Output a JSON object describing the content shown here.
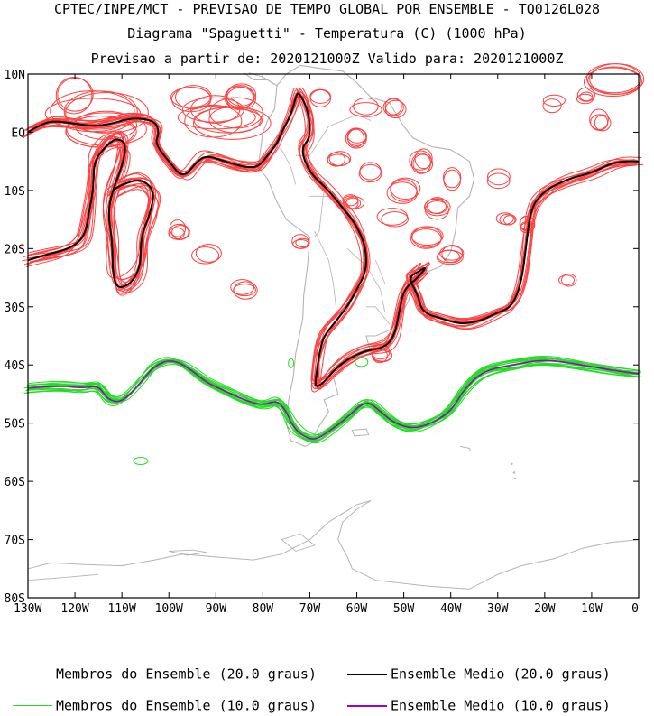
{
  "titles": {
    "line1": "CPTEC/INPE/MCT - PREVISAO DE TEMPO GLOBAL POR ENSEMBLE - TQ0126L028",
    "line2": "Diagrama \"Spaguetti\" - Temperatura (C) (1000 hPa)",
    "line3": "Previsao a partir de: 2020121000Z  Valido para: 2020121000Z"
  },
  "map": {
    "lon_range": [
      -130,
      0
    ],
    "lat_range": [
      -80,
      10
    ],
    "lat_ticks": [
      {
        "value": 10,
        "label": "10N"
      },
      {
        "value": 0,
        "label": "EQ"
      },
      {
        "value": -10,
        "label": "10S"
      },
      {
        "value": -20,
        "label": "20S"
      },
      {
        "value": -30,
        "label": "30S"
      },
      {
        "value": -40,
        "label": "40S"
      },
      {
        "value": -50,
        "label": "50S"
      },
      {
        "value": -60,
        "label": "60S"
      },
      {
        "value": -70,
        "label": "70S"
      },
      {
        "value": -80,
        "label": "80S"
      }
    ],
    "lon_ticks": [
      {
        "value": -130,
        "label": "130W"
      },
      {
        "value": -120,
        "label": "120W"
      },
      {
        "value": -110,
        "label": "110W"
      },
      {
        "value": -100,
        "label": "100W"
      },
      {
        "value": -90,
        "label": "90W"
      },
      {
        "value": -80,
        "label": "80W"
      },
      {
        "value": -70,
        "label": "70W"
      },
      {
        "value": -60,
        "label": "60W"
      },
      {
        "value": -50,
        "label": "50W"
      },
      {
        "value": -40,
        "label": "40W"
      },
      {
        "value": -30,
        "label": "30W"
      },
      {
        "value": -20,
        "label": "20W"
      },
      {
        "value": -10,
        "label": "10W"
      },
      {
        "value": 0,
        "label": "0"
      }
    ],
    "colors": {
      "members_20": "#ff4040",
      "mean_20": "#000000",
      "members_10": "#22dd22",
      "mean_10": "#a000c8",
      "coast": "#b4b4b4"
    },
    "isotherm_20_mean": [
      [
        -130,
        0
      ],
      [
        -128,
        1
      ],
      [
        -125,
        2
      ],
      [
        -120,
        1.5
      ],
      [
        -116,
        1
      ],
      [
        -112,
        1.5
      ],
      [
        -108,
        2.5
      ],
      [
        -103,
        2
      ],
      [
        -102,
        0
      ],
      [
        -103,
        -2
      ],
      [
        -100,
        -5
      ],
      [
        -97,
        -8
      ],
      [
        -94,
        -5
      ],
      [
        -92,
        -4
      ],
      [
        -88,
        -5
      ],
      [
        -84,
        -6
      ],
      [
        -81,
        -6
      ],
      [
        -79,
        -4
      ],
      [
        -77,
        -2
      ],
      [
        -76,
        0
      ],
      [
        -74,
        3
      ],
      [
        -73,
        6
      ],
      [
        -72.5,
        7
      ],
      [
        -71,
        5
      ],
      [
        -70,
        2
      ],
      [
        -70,
        -1
      ],
      [
        -72,
        -3
      ],
      [
        -70,
        -7
      ],
      [
        -66,
        -10
      ],
      [
        -63,
        -13
      ],
      [
        -60,
        -16
      ],
      [
        -58,
        -20
      ],
      [
        -58,
        -24
      ],
      [
        -60,
        -27
      ],
      [
        -62,
        -30
      ],
      [
        -65,
        -33
      ],
      [
        -67,
        -35
      ],
      [
        -68,
        -38
      ],
      [
        -68.5,
        -41
      ],
      [
        -69,
        -44
      ],
      [
        -67,
        -43
      ],
      [
        -65,
        -41
      ],
      [
        -62,
        -39
      ],
      [
        -58,
        -37.5
      ],
      [
        -54,
        -37
      ],
      [
        -52,
        -35
      ],
      [
        -51,
        -31
      ],
      [
        -50,
        -27
      ],
      [
        -47,
        -25
      ],
      [
        -45,
        -23
      ],
      [
        -47,
        -24
      ],
      [
        -49,
        -25
      ],
      [
        -47,
        -28
      ],
      [
        -46,
        -31
      ],
      [
        -42,
        -32
      ],
      [
        -38,
        -33
      ],
      [
        -34,
        -32.5
      ],
      [
        -30,
        -31
      ],
      [
        -27,
        -30
      ],
      [
        -25,
        -26
      ],
      [
        -24,
        -20
      ],
      [
        -23,
        -13
      ],
      [
        -20,
        -10
      ],
      [
        -15,
        -8
      ],
      [
        -10,
        -7
      ],
      [
        -5,
        -5
      ],
      [
        0,
        -5
      ]
    ],
    "isotherm_20_mean_b": [
      [
        -130,
        -22
      ],
      [
        -126,
        -21
      ],
      [
        -121,
        -20
      ],
      [
        -118,
        -18
      ],
      [
        -117,
        -14
      ],
      [
        -116,
        -9
      ],
      [
        -116,
        -5
      ],
      [
        -113,
        -2
      ],
      [
        -111,
        -1
      ],
      [
        -109,
        -2
      ],
      [
        -110,
        -6
      ],
      [
        -112,
        -10
      ],
      [
        -113,
        -14
      ],
      [
        -112,
        -19
      ],
      [
        -112,
        -24
      ],
      [
        -111,
        -27
      ],
      [
        -108,
        -26
      ],
      [
        -106,
        -23
      ],
      [
        -106,
        -18
      ],
      [
        -104,
        -14
      ],
      [
        -103,
        -10
      ],
      [
        -106,
        -8
      ],
      [
        -110,
        -9
      ],
      [
        -112,
        -10
      ]
    ],
    "isotherm_10_mean": [
      [
        -130,
        -44
      ],
      [
        -124,
        -43.5
      ],
      [
        -118,
        -44
      ],
      [
        -115,
        -43.5
      ],
      [
        -113,
        -46
      ],
      [
        -110,
        -46.5
      ],
      [
        -106,
        -43
      ],
      [
        -103,
        -40
      ],
      [
        -99,
        -39
      ],
      [
        -95,
        -41
      ],
      [
        -92,
        -43
      ],
      [
        -88,
        -44.5
      ],
      [
        -84,
        -46
      ],
      [
        -80,
        -47
      ],
      [
        -77,
        -46
      ],
      [
        -75,
        -48
      ],
      [
        -74,
        -50
      ],
      [
        -72,
        -52
      ],
      [
        -69,
        -53
      ],
      [
        -66,
        -51.5
      ],
      [
        -62,
        -49
      ],
      [
        -58,
        -46
      ],
      [
        -55,
        -48
      ],
      [
        -52,
        -50
      ],
      [
        -48,
        -51
      ],
      [
        -44,
        -50
      ],
      [
        -40,
        -48
      ],
      [
        -37,
        -44
      ],
      [
        -33,
        -41
      ],
      [
        -27,
        -40
      ],
      [
        -20,
        -39
      ],
      [
        -12,
        -40
      ],
      [
        -5,
        -41
      ],
      [
        0,
        -41.5
      ]
    ]
  }
}
